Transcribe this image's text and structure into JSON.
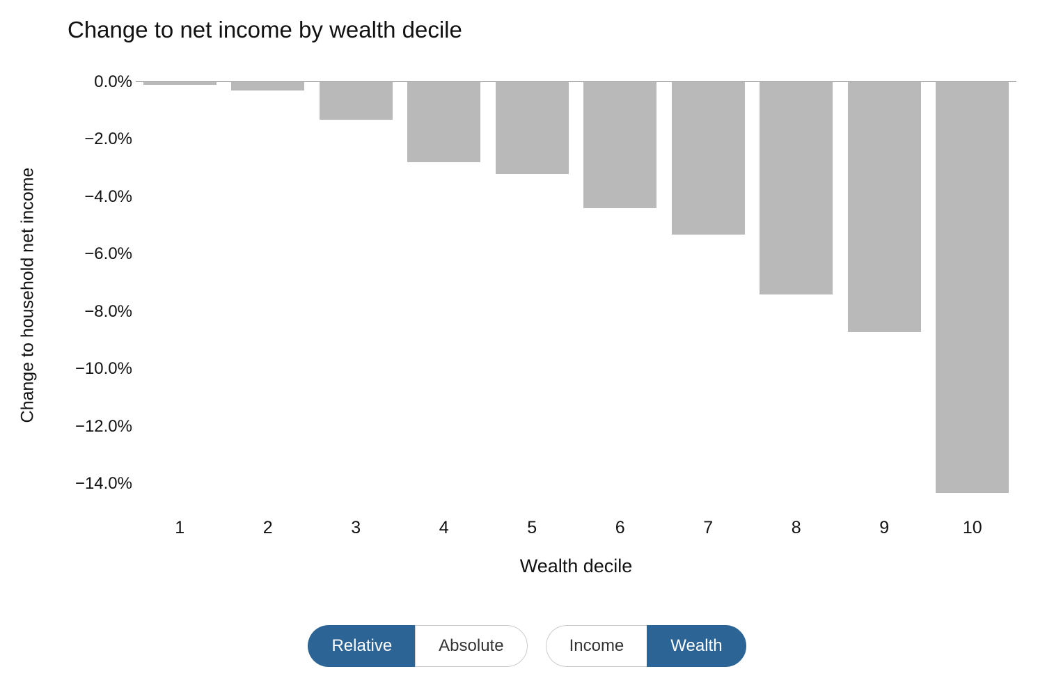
{
  "title": "Change to net income by wealth decile",
  "chart_data": {
    "type": "bar",
    "title": "Change to net income by wealth decile",
    "xlabel": "Wealth decile",
    "ylabel": "Change to household net income",
    "categories": [
      "1",
      "2",
      "3",
      "4",
      "5",
      "6",
      "7",
      "8",
      "9",
      "10"
    ],
    "values": [
      -0.1,
      -0.3,
      -1.3,
      -2.8,
      -3.2,
      -4.4,
      -5.3,
      -7.4,
      -8.7,
      -14.3
    ],
    "unit": "%",
    "ylim": [
      -14.5,
      0
    ],
    "yticks": [
      0,
      -2,
      -4,
      -6,
      -8,
      -10,
      -12,
      -14
    ],
    "ytick_labels": [
      "0.0%",
      "−2.0%",
      "−4.0%",
      "−6.0%",
      "−8.0%",
      "−10.0%",
      "−12.0%",
      "−14.0%"
    ],
    "grid": "off",
    "legend": "none",
    "bar_color": "#b9b9b9"
  },
  "controls": {
    "groups": [
      {
        "name": "mode",
        "options": [
          {
            "label": "Relative",
            "active": true
          },
          {
            "label": "Absolute",
            "active": false
          }
        ]
      },
      {
        "name": "variable",
        "options": [
          {
            "label": "Income",
            "active": false
          },
          {
            "label": "Wealth",
            "active": true
          }
        ]
      }
    ]
  },
  "colors": {
    "accent": "#2C6496",
    "bar": "#b9b9b9",
    "axis_line": "#7a7a7a"
  }
}
